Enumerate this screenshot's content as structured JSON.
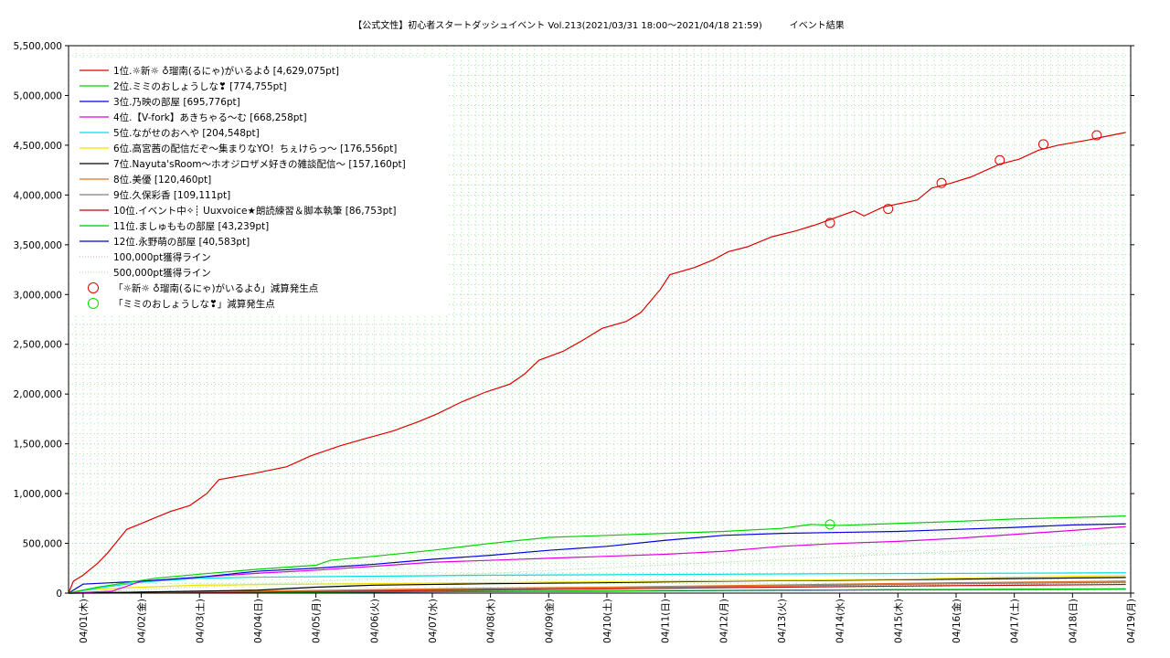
{
  "chart_data": {
    "type": "line",
    "title": "【公式文性】初心者スタートダッシュイベント Vol.213(2021/03/31 18:00〜2021/04/18 21:59)　　　イベント結果",
    "x_tick_labels": [
      "04/01(木)",
      "04/02(金)",
      "04/03(土)",
      "04/04(日)",
      "04/05(月)",
      "04/06(火)",
      "04/07(水)",
      "04/08(木)",
      "04/09(金)",
      "04/10(土)",
      "04/11(日)",
      "04/12(月)",
      "04/13(火)",
      "04/14(水)",
      "04/15(木)",
      "04/16(金)",
      "04/17(土)",
      "04/18(日)",
      "04/19(月)"
    ],
    "x_start": "2021-03-31 18:00",
    "x_end": "2021-04-19 00:00",
    "ylim": [
      0,
      5500000
    ],
    "y_ticks": [
      0,
      500000,
      1000000,
      1500000,
      2000000,
      2500000,
      3000000,
      3500000,
      4000000,
      4500000,
      5000000,
      5500000
    ],
    "y_tick_labels": [
      "0",
      "500,000",
      "1,000,000",
      "1,500,000",
      "2,000,000",
      "2,500,000",
      "3,000,000",
      "3,500,000",
      "4,000,000",
      "4,500,000",
      "5,000,000",
      "5,500,000"
    ],
    "grid": true,
    "legend_position": "top-left",
    "series": [
      {
        "name": "1位.☼新☼ ♁瑠南(るにゃ)がいるよ♁ [4,629,075pt]",
        "color": "#e00000",
        "points": [
          [
            "2021-03-31 18:00",
            0
          ],
          [
            "2021-03-31 20:00",
            120000
          ],
          [
            "2021-04-01 00:00",
            180000
          ],
          [
            "2021-04-01 06:00",
            300000
          ],
          [
            "2021-04-01 10:00",
            400000
          ],
          [
            "2021-04-01 14:00",
            520000
          ],
          [
            "2021-04-01 18:00",
            640000
          ],
          [
            "2021-04-02 00:00",
            700000
          ],
          [
            "2021-04-02 06:00",
            760000
          ],
          [
            "2021-04-02 12:00",
            820000
          ],
          [
            "2021-04-02 20:00",
            880000
          ],
          [
            "2021-04-03 03:00",
            1000000
          ],
          [
            "2021-04-03 08:00",
            1140000
          ],
          [
            "2021-04-03 22:00",
            1200000
          ],
          [
            "2021-04-04 12:00",
            1270000
          ],
          [
            "2021-04-04 22:00",
            1380000
          ],
          [
            "2021-04-05 10:00",
            1480000
          ],
          [
            "2021-04-05 20:00",
            1550000
          ],
          [
            "2021-04-06 08:00",
            1630000
          ],
          [
            "2021-04-06 18:00",
            1720000
          ],
          [
            "2021-04-07 02:00",
            1800000
          ],
          [
            "2021-04-07 12:00",
            1920000
          ],
          [
            "2021-04-07 22:00",
            2020000
          ],
          [
            "2021-04-08 08:00",
            2100000
          ],
          [
            "2021-04-08 14:00",
            2200000
          ],
          [
            "2021-04-08 20:00",
            2340000
          ],
          [
            "2021-04-09 06:00",
            2430000
          ],
          [
            "2021-04-09 14:00",
            2540000
          ],
          [
            "2021-04-09 22:00",
            2660000
          ],
          [
            "2021-04-10 08:00",
            2730000
          ],
          [
            "2021-04-10 14:00",
            2820000
          ],
          [
            "2021-04-10 22:00",
            3050000
          ],
          [
            "2021-04-11 02:00",
            3200000
          ],
          [
            "2021-04-11 12:00",
            3270000
          ],
          [
            "2021-04-11 20:00",
            3350000
          ],
          [
            "2021-04-12 02:00",
            3430000
          ],
          [
            "2021-04-12 10:00",
            3480000
          ],
          [
            "2021-04-12 20:00",
            3580000
          ],
          [
            "2021-04-13 06:00",
            3640000
          ],
          [
            "2021-04-13 14:00",
            3700000
          ],
          [
            "2021-04-13 22:00",
            3770000
          ],
          [
            "2021-04-14 06:00",
            3840000
          ],
          [
            "2021-04-14 10:00",
            3790000
          ],
          [
            "2021-04-14 18:00",
            3880000
          ],
          [
            "2021-04-15 08:00",
            3950000
          ],
          [
            "2021-04-15 14:00",
            4070000
          ],
          [
            "2021-04-15 22:00",
            4120000
          ],
          [
            "2021-04-16 06:00",
            4180000
          ],
          [
            "2021-04-16 18:00",
            4310000
          ],
          [
            "2021-04-17 02:00",
            4360000
          ],
          [
            "2021-04-17 10:00",
            4450000
          ],
          [
            "2021-04-17 18:00",
            4500000
          ],
          [
            "2021-04-18 06:00",
            4550000
          ],
          [
            "2021-04-18 14:00",
            4590000
          ],
          [
            "2021-04-18 21:59",
            4629075
          ]
        ]
      },
      {
        "name": "2位.ミミのおしょうしな❣ [774,755pt]",
        "color": "#00d000",
        "points": [
          [
            "2021-03-31 18:00",
            0
          ],
          [
            "2021-04-01 06:00",
            60000
          ],
          [
            "2021-04-02 06:00",
            150000
          ],
          [
            "2021-04-03 00:00",
            190000
          ],
          [
            "2021-04-04 00:00",
            240000
          ],
          [
            "2021-04-05 00:00",
            280000
          ],
          [
            "2021-04-05 06:00",
            330000
          ],
          [
            "2021-04-06 00:00",
            370000
          ],
          [
            "2021-04-07 00:00",
            430000
          ],
          [
            "2021-04-08 00:00",
            500000
          ],
          [
            "2021-04-09 00:00",
            560000
          ],
          [
            "2021-04-10 00:00",
            580000
          ],
          [
            "2021-04-11 00:00",
            600000
          ],
          [
            "2021-04-12 00:00",
            620000
          ],
          [
            "2021-04-13 00:00",
            650000
          ],
          [
            "2021-04-13 12:00",
            690000
          ],
          [
            "2021-04-14 00:00",
            680000
          ],
          [
            "2021-04-15 00:00",
            700000
          ],
          [
            "2021-04-16 00:00",
            720000
          ],
          [
            "2021-04-17 00:00",
            745000
          ],
          [
            "2021-04-18 00:00",
            760000
          ],
          [
            "2021-04-18 21:59",
            774755
          ]
        ]
      },
      {
        "name": "3位.乃映の部屋 [695,776pt]",
        "color": "#0000e0",
        "points": [
          [
            "2021-03-31 18:00",
            0
          ],
          [
            "2021-04-01 00:00",
            90000
          ],
          [
            "2021-04-02 00:00",
            120000
          ],
          [
            "2021-04-03 00:00",
            160000
          ],
          [
            "2021-04-04 00:00",
            220000
          ],
          [
            "2021-04-05 00:00",
            250000
          ],
          [
            "2021-04-06 00:00",
            290000
          ],
          [
            "2021-04-07 00:00",
            340000
          ],
          [
            "2021-04-08 00:00",
            380000
          ],
          [
            "2021-04-09 00:00",
            430000
          ],
          [
            "2021-04-10 00:00",
            470000
          ],
          [
            "2021-04-11 00:00",
            530000
          ],
          [
            "2021-04-12 00:00",
            580000
          ],
          [
            "2021-04-13 00:00",
            600000
          ],
          [
            "2021-04-14 00:00",
            610000
          ],
          [
            "2021-04-15 00:00",
            620000
          ],
          [
            "2021-04-16 00:00",
            640000
          ],
          [
            "2021-04-17 00:00",
            660000
          ],
          [
            "2021-04-18 00:00",
            685000
          ],
          [
            "2021-04-18 21:59",
            695776
          ]
        ]
      },
      {
        "name": "4位.【V-fork】あきちゃる〜む [668,258pt]",
        "color": "#e000e0",
        "points": [
          [
            "2021-03-31 18:00",
            0
          ],
          [
            "2021-04-01 12:00",
            20000
          ],
          [
            "2021-04-02 00:00",
            120000
          ],
          [
            "2021-04-03 00:00",
            160000
          ],
          [
            "2021-04-04 00:00",
            200000
          ],
          [
            "2021-04-05 00:00",
            230000
          ],
          [
            "2021-04-06 00:00",
            270000
          ],
          [
            "2021-04-07 00:00",
            310000
          ],
          [
            "2021-04-08 00:00",
            330000
          ],
          [
            "2021-04-09 00:00",
            350000
          ],
          [
            "2021-04-10 00:00",
            370000
          ],
          [
            "2021-04-11 00:00",
            390000
          ],
          [
            "2021-04-12 00:00",
            420000
          ],
          [
            "2021-04-13 00:00",
            470000
          ],
          [
            "2021-04-14 00:00",
            500000
          ],
          [
            "2021-04-15 00:00",
            520000
          ],
          [
            "2021-04-16 00:00",
            550000
          ],
          [
            "2021-04-17 00:00",
            590000
          ],
          [
            "2021-04-18 00:00",
            630000
          ],
          [
            "2021-04-18 21:59",
            668258
          ]
        ]
      },
      {
        "name": "5位.ながせのおへや [204,548pt]",
        "color": "#00e0e0",
        "points": [
          [
            "2021-03-31 18:00",
            0
          ],
          [
            "2021-04-01 06:00",
            50000
          ],
          [
            "2021-04-02 00:00",
            110000
          ],
          [
            "2021-04-03 00:00",
            150000
          ],
          [
            "2021-04-04 00:00",
            160000
          ],
          [
            "2021-04-06 00:00",
            170000
          ],
          [
            "2021-04-08 00:00",
            180000
          ],
          [
            "2021-04-10 00:00",
            185000
          ],
          [
            "2021-04-12 00:00",
            190000
          ],
          [
            "2021-04-14 00:00",
            195000
          ],
          [
            "2021-04-16 00:00",
            198000
          ],
          [
            "2021-04-18 21:59",
            204548
          ]
        ]
      },
      {
        "name": "6位.高宮茜の配信だぞ〜集まりなYO！ちぇけらっ〜 [176,556pt]",
        "color": "#f0e000",
        "points": [
          [
            "2021-03-31 18:00",
            0
          ],
          [
            "2021-04-01 00:00",
            30000
          ],
          [
            "2021-04-02 00:00",
            60000
          ],
          [
            "2021-04-03 00:00",
            80000
          ],
          [
            "2021-04-05 00:00",
            90000
          ],
          [
            "2021-04-07 00:00",
            100000
          ],
          [
            "2021-04-09 00:00",
            110000
          ],
          [
            "2021-04-11 00:00",
            120000
          ],
          [
            "2021-04-13 00:00",
            130000
          ],
          [
            "2021-04-15 00:00",
            140000
          ],
          [
            "2021-04-17 00:00",
            160000
          ],
          [
            "2021-04-18 21:59",
            176556
          ]
        ]
      },
      {
        "name": "7位.Nayuta'sRoom〜ホオジロザメ好きの雑談配信〜 [157,160pt]",
        "color": "#000000",
        "points": [
          [
            "2021-03-31 18:00",
            0
          ],
          [
            "2021-04-02 00:00",
            10000
          ],
          [
            "2021-04-04 00:00",
            30000
          ],
          [
            "2021-04-05 00:00",
            60000
          ],
          [
            "2021-04-06 00:00",
            80000
          ],
          [
            "2021-04-08 00:00",
            95000
          ],
          [
            "2021-04-10 00:00",
            105000
          ],
          [
            "2021-04-12 00:00",
            120000
          ],
          [
            "2021-04-14 00:00",
            130000
          ],
          [
            "2021-04-16 00:00",
            140000
          ],
          [
            "2021-04-18 21:59",
            157160
          ]
        ]
      },
      {
        "name": "8位.美優 [120,460pt]",
        "color": "#e07020",
        "points": [
          [
            "2021-03-31 18:00",
            0
          ],
          [
            "2021-04-02 00:00",
            10000
          ],
          [
            "2021-04-04 00:00",
            20000
          ],
          [
            "2021-04-06 00:00",
            35000
          ],
          [
            "2021-04-08 00:00",
            50000
          ],
          [
            "2021-04-10 00:00",
            60000
          ],
          [
            "2021-04-12 00:00",
            75000
          ],
          [
            "2021-04-14 00:00",
            90000
          ],
          [
            "2021-04-16 00:00",
            105000
          ],
          [
            "2021-04-18 21:59",
            120460
          ]
        ]
      },
      {
        "name": "9位.久保彩香 [109,111pt]",
        "color": "#808080",
        "points": [
          [
            "2021-03-31 18:00",
            0
          ],
          [
            "2021-04-02 00:00",
            8000
          ],
          [
            "2021-04-04 00:00",
            18000
          ],
          [
            "2021-04-06 00:00",
            30000
          ],
          [
            "2021-04-08 00:00",
            42000
          ],
          [
            "2021-04-10 00:00",
            55000
          ],
          [
            "2021-04-12 00:00",
            68000
          ],
          [
            "2021-04-14 00:00",
            80000
          ],
          [
            "2021-04-16 00:00",
            95000
          ],
          [
            "2021-04-18 21:59",
            109111
          ]
        ]
      },
      {
        "name": "10位.イベント中✧┊ Uuxvoice★朗読練習＆脚本執筆 [86,753pt]",
        "color": "#c00000",
        "points": [
          [
            "2021-03-31 18:00",
            0
          ],
          [
            "2021-04-02 00:00",
            5000
          ],
          [
            "2021-04-04 00:00",
            12000
          ],
          [
            "2021-04-06 00:00",
            22000
          ],
          [
            "2021-04-08 00:00",
            32000
          ],
          [
            "2021-04-10 00:00",
            42000
          ],
          [
            "2021-04-12 00:00",
            55000
          ],
          [
            "2021-04-14 00:00",
            65000
          ],
          [
            "2021-04-16 00:00",
            75000
          ],
          [
            "2021-04-18 21:59",
            86753
          ]
        ]
      },
      {
        "name": "11位.ましゅももの部屋 [43,239pt]",
        "color": "#00c000",
        "points": [
          [
            "2021-03-31 18:00",
            0
          ],
          [
            "2021-04-03 00:00",
            5000
          ],
          [
            "2021-04-06 00:00",
            12000
          ],
          [
            "2021-04-09 00:00",
            20000
          ],
          [
            "2021-04-12 00:00",
            28000
          ],
          [
            "2021-04-15 00:00",
            35000
          ],
          [
            "2021-04-18 21:59",
            43239
          ]
        ]
      },
      {
        "name": "12位.永野萌の部屋 [40,583pt]",
        "color": "#0000c0",
        "points": [
          [
            "2021-03-31 18:00",
            0
          ],
          [
            "2021-04-03 00:00",
            4000
          ],
          [
            "2021-04-06 00:00",
            10000
          ],
          [
            "2021-04-09 00:00",
            18000
          ],
          [
            "2021-04-12 00:00",
            26000
          ],
          [
            "2021-04-15 00:00",
            33000
          ],
          [
            "2021-04-18 21:59",
            40583
          ]
        ]
      }
    ],
    "guide_lines": [
      {
        "name": "100,000pt獲得ライン",
        "color": "#d8a0a0",
        "points": [
          [
            "2021-03-31 18:00",
            0
          ],
          [
            "2021-04-18 21:59",
            100000
          ]
        ]
      },
      {
        "name": "500,000pt獲得ライン",
        "color": "#a0dca0",
        "points": [
          [
            "2021-03-31 18:00",
            0
          ],
          [
            "2021-04-18 21:59",
            500000
          ]
        ]
      }
    ],
    "markers": [
      {
        "name": "「☼新☼ ♁瑠南(るにゃ)がいるよ♁」減算発生点",
        "color": "#e00000",
        "points": [
          [
            "2021-04-13 20:00",
            3720000
          ],
          [
            "2021-04-14 20:00",
            3860000
          ],
          [
            "2021-04-15 18:00",
            4120000
          ],
          [
            "2021-04-16 18:00",
            4350000
          ],
          [
            "2021-04-17 12:00",
            4510000
          ],
          [
            "2021-04-18 10:00",
            4600000
          ]
        ]
      },
      {
        "name": "「ミミのおしょうしな❣」減算発生点",
        "color": "#00e000",
        "points": [
          [
            "2021-04-13 20:00",
            690000
          ]
        ]
      }
    ]
  }
}
